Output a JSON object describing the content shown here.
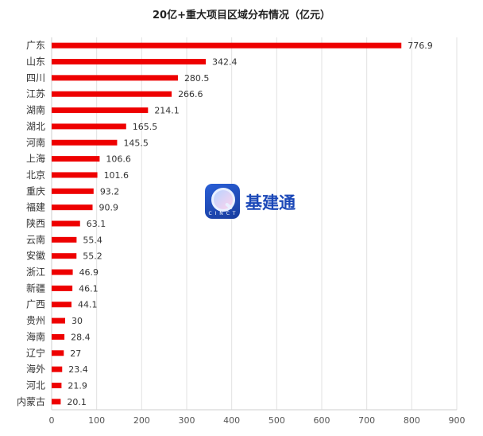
{
  "chart_data": {
    "type": "bar",
    "orientation": "horizontal",
    "title": "20亿+重大项目区域分布情况（亿元）",
    "categories": [
      "广东",
      "山东",
      "四川",
      "江苏",
      "湖南",
      "湖北",
      "河南",
      "上海",
      "北京",
      "重庆",
      "福建",
      "陕西",
      "云南",
      "安徽",
      "浙江",
      "新疆",
      "广西",
      "贵州",
      "海南",
      "辽宁",
      "海外",
      "河北",
      "内蒙古"
    ],
    "values": [
      776.9,
      342.4,
      280.5,
      266.6,
      214.1,
      165.5,
      145.5,
      106.6,
      101.6,
      93.2,
      90.9,
      63.1,
      55.4,
      55.2,
      46.9,
      46.1,
      44.1,
      30,
      28.4,
      27,
      23.4,
      21.9,
      20.1
    ],
    "value_labels": [
      "776.9",
      "342.4",
      "280.5",
      "266.6",
      "214.1",
      "165.5",
      "145.5",
      "106.6",
      "101.6",
      "93.2",
      "90.9",
      "63.1",
      "55.4",
      "55.2",
      "46.9",
      "46.1",
      "44.1",
      "30",
      "28.4",
      "27",
      "23.4",
      "21.9",
      "20.1"
    ],
    "xlim": [
      0,
      900
    ],
    "xticks": [
      0,
      100,
      200,
      300,
      400,
      500,
      600,
      700,
      800,
      900
    ],
    "grid": true,
    "bar_color": "#ee0000",
    "grid_color": "#e2e2e2",
    "legend": "none"
  },
  "watermark": {
    "sub": "C I N C T",
    "text": "基建通"
  }
}
